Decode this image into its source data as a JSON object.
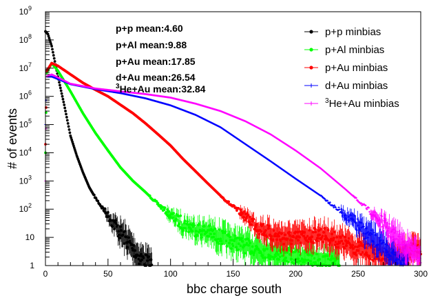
{
  "chart_data": {
    "type": "scatter",
    "title": "",
    "xlabel": "bbc charge south",
    "ylabel": "# of events",
    "xlim": [
      0,
      300
    ],
    "ylim": [
      1,
      1000000000
    ],
    "yscale": "log",
    "x_ticks": [
      0,
      50,
      100,
      150,
      200,
      250,
      300
    ],
    "y_ticks": [
      {
        "base": "10",
        "exp": "9"
      },
      {
        "base": "10",
        "exp": "8"
      },
      {
        "base": "10",
        "exp": "7"
      },
      {
        "base": "10",
        "exp": "6"
      },
      {
        "base": "10",
        "exp": "5"
      },
      {
        "base": "10",
        "exp": "4"
      },
      {
        "base": "10",
        "exp": "3"
      },
      {
        "base": "10",
        "exp": "2"
      },
      {
        "base": "10",
        "exp": ""
      },
      {
        "base": "1",
        "exp": ""
      }
    ],
    "grid": false,
    "legend_position": "top-right",
    "annotations": [
      {
        "prefix": "",
        "text": "p+p mean:4.60"
      },
      {
        "prefix": "",
        "text": "p+Al mean:9.88"
      },
      {
        "prefix": "",
        "text": "p+Au mean:17.85"
      },
      {
        "prefix": "",
        "text": "d+Au mean:26.54"
      },
      {
        "prefix": "3",
        "text": "He+Au mean:32.84"
      }
    ],
    "series": [
      {
        "name": "p+p minbias",
        "name_prefix": "",
        "name_text": "p+p minbias",
        "color": "#000000",
        "marker": "circle",
        "end_x": 85,
        "points": [
          [
            0,
            200000000
          ],
          [
            2,
            160000000
          ],
          [
            5,
            60000000
          ],
          [
            10,
            5000000
          ],
          [
            15,
            500000
          ],
          [
            20,
            40000
          ],
          [
            25,
            8000
          ],
          [
            30,
            2000
          ],
          [
            35,
            600
          ],
          [
            40,
            250
          ],
          [
            45,
            120
          ],
          [
            50,
            60
          ],
          [
            55,
            30
          ],
          [
            60,
            14
          ],
          [
            65,
            8
          ],
          [
            70,
            4
          ],
          [
            75,
            2
          ],
          [
            80,
            1.5
          ],
          [
            85,
            1
          ]
        ]
      },
      {
        "name": "p+Al minbias",
        "name_prefix": "",
        "name_text": "p+Al minbias",
        "color": "#00ff00",
        "marker": "circle",
        "end_x": 235,
        "points": [
          [
            0,
            10000
          ],
          [
            1,
            7000000
          ],
          [
            5,
            15000000
          ],
          [
            10,
            8000000
          ],
          [
            20,
            1500000
          ],
          [
            30,
            250000
          ],
          [
            40,
            50000
          ],
          [
            50,
            12000
          ],
          [
            60,
            3000
          ],
          [
            70,
            1000
          ],
          [
            80,
            400
          ],
          [
            90,
            150
          ],
          [
            100,
            60
          ],
          [
            110,
            30
          ],
          [
            120,
            20
          ],
          [
            130,
            15
          ],
          [
            140,
            10
          ],
          [
            150,
            7
          ],
          [
            160,
            5
          ],
          [
            180,
            3
          ],
          [
            200,
            2
          ],
          [
            220,
            1.5
          ],
          [
            235,
            1
          ]
        ]
      },
      {
        "name": "p+Au minbias",
        "name_prefix": "",
        "name_text": "p+Au minbias",
        "color": "#ff0000",
        "marker": "circle",
        "end_x": 300,
        "points": [
          [
            0,
            20000
          ],
          [
            1,
            8000000
          ],
          [
            5,
            15000000
          ],
          [
            10,
            12000000
          ],
          [
            20,
            6000000
          ],
          [
            30,
            3000000
          ],
          [
            40,
            1700000
          ],
          [
            50,
            1000000
          ],
          [
            60,
            500000
          ],
          [
            70,
            250000
          ],
          [
            80,
            110000
          ],
          [
            90,
            45000
          ],
          [
            100,
            18000
          ],
          [
            110,
            6000
          ],
          [
            120,
            2200
          ],
          [
            130,
            800
          ],
          [
            140,
            300
          ],
          [
            150,
            120
          ],
          [
            160,
            55
          ],
          [
            170,
            25
          ],
          [
            180,
            13
          ],
          [
            190,
            10
          ],
          [
            200,
            9
          ],
          [
            210,
            11
          ],
          [
            220,
            13
          ],
          [
            230,
            9
          ],
          [
            240,
            6
          ],
          [
            250,
            4
          ],
          [
            260,
            3
          ],
          [
            270,
            2
          ],
          [
            280,
            2
          ],
          [
            290,
            3
          ],
          [
            300,
            4
          ]
        ]
      },
      {
        "name": "d+Au minbias",
        "name_prefix": "",
        "name_text": "d+Au minbias",
        "color": "#0000ff",
        "marker": "cross",
        "end_x": 290,
        "points": [
          [
            0,
            100000
          ],
          [
            1,
            5000000
          ],
          [
            5,
            5000000
          ],
          [
            20,
            2700000
          ],
          [
            40,
            1800000
          ],
          [
            60,
            1300000
          ],
          [
            80,
            850000
          ],
          [
            100,
            480000
          ],
          [
            120,
            220000
          ],
          [
            140,
            80000
          ],
          [
            160,
            20000
          ],
          [
            180,
            5000
          ],
          [
            200,
            1200
          ],
          [
            220,
            300
          ],
          [
            240,
            60
          ],
          [
            260,
            10
          ],
          [
            280,
            2
          ],
          [
            290,
            1
          ]
        ]
      },
      {
        "name": "3He+Au minbias",
        "name_prefix": "3",
        "name_text": "He+Au minbias",
        "color": "#ff00ff",
        "marker": "cross",
        "end_x": 300,
        "points": [
          [
            0,
            1000
          ],
          [
            1,
            5000000
          ],
          [
            5,
            6000000
          ],
          [
            20,
            2800000
          ],
          [
            40,
            1900000
          ],
          [
            60,
            1500000
          ],
          [
            80,
            1200000
          ],
          [
            100,
            900000
          ],
          [
            120,
            550000
          ],
          [
            140,
            300000
          ],
          [
            160,
            130000
          ],
          [
            180,
            45000
          ],
          [
            200,
            12000
          ],
          [
            220,
            2800
          ],
          [
            240,
            500
          ],
          [
            260,
            80
          ],
          [
            280,
            10
          ],
          [
            290,
            4
          ],
          [
            300,
            2
          ]
        ]
      }
    ]
  }
}
